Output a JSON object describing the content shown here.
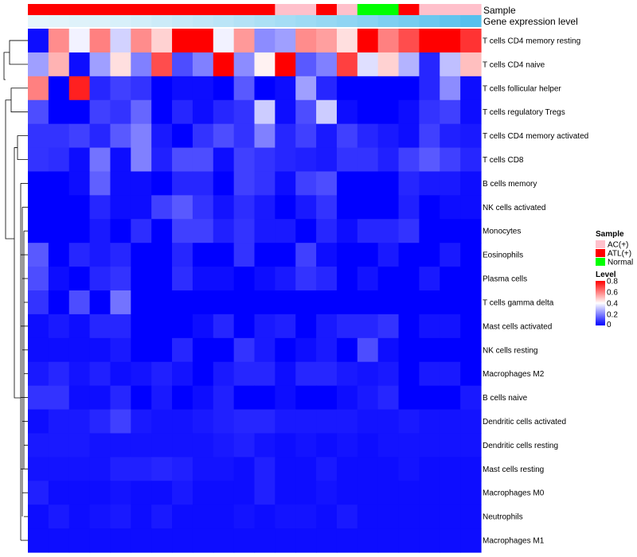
{
  "chart_data": {
    "type": "heatmap",
    "annotation_tracks": [
      {
        "name": "Sample",
        "values": [
          "ATL(+)",
          "ATL(+)",
          "ATL(+)",
          "ATL(+)",
          "ATL(+)",
          "ATL(+)",
          "ATL(+)",
          "ATL(+)",
          "ATL(+)",
          "ATL(+)",
          "ATL(+)",
          "ATL(+)",
          "AC(+)",
          "AC(+)",
          "ATL(+)",
          "AC(+)",
          "Normal",
          "Normal",
          "ATL(+)",
          "AC(+)",
          "AC(+)",
          "AC(+)"
        ]
      },
      {
        "name": "Gene expression level",
        "values": [
          0.0,
          0.02,
          0.05,
          0.07,
          0.1,
          0.14,
          0.18,
          0.22,
          0.26,
          0.3,
          0.35,
          0.4,
          0.45,
          0.5,
          0.55,
          0.6,
          0.65,
          0.72,
          0.78,
          0.85,
          0.92,
          1.0
        ]
      }
    ],
    "rows": [
      "T cells CD4 memory resting",
      "T cells CD4 naive",
      "T cells follicular helper",
      "T cells regulatory  Tregs",
      "T cells CD4 memory activated",
      "T cells CD8",
      "B cells memory",
      "NK cells activated",
      "Monocytes",
      "Eosinophils",
      "Plasma cells",
      "T cells gamma delta",
      "Mast cells activated",
      "NK cells resting",
      "Macrophages M2",
      "B cells naive",
      "Dendritic cells activated",
      "Dendritic cells resting",
      "Mast cells resting",
      "Macrophages M0",
      "Neutrophils",
      "Macrophages M1"
    ],
    "values": [
      [
        0.02,
        0.58,
        0.38,
        0.6,
        0.33,
        0.58,
        0.47,
        0.8,
        0.8,
        0.38,
        0.56,
        0.22,
        0.25,
        0.58,
        0.55,
        0.45,
        0.8,
        0.6,
        0.68,
        0.8,
        0.8,
        0.72
      ],
      [
        0.25,
        0.52,
        0.02,
        0.25,
        0.45,
        0.2,
        0.68,
        0.12,
        0.2,
        0.8,
        0.22,
        0.42,
        0.8,
        0.14,
        0.2,
        0.7,
        0.35,
        0.47,
        0.28,
        0.06,
        0.3,
        0.5
      ],
      [
        0.6,
        0.0,
        0.75,
        0.06,
        0.1,
        0.08,
        0.0,
        0.02,
        0.02,
        0.0,
        0.14,
        0.0,
        0.02,
        0.25,
        0.06,
        0.0,
        0.0,
        0.0,
        0.0,
        0.06,
        0.22,
        0.02
      ],
      [
        0.12,
        0.0,
        0.0,
        0.1,
        0.08,
        0.16,
        0.0,
        0.06,
        0.02,
        0.06,
        0.08,
        0.32,
        0.02,
        0.12,
        0.32,
        0.02,
        0.0,
        0.0,
        0.02,
        0.08,
        0.1,
        0.02
      ],
      [
        0.08,
        0.08,
        0.1,
        0.06,
        0.14,
        0.2,
        0.04,
        0.0,
        0.08,
        0.12,
        0.08,
        0.2,
        0.06,
        0.1,
        0.04,
        0.1,
        0.06,
        0.04,
        0.02,
        0.1,
        0.05,
        0.04
      ],
      [
        0.08,
        0.07,
        0.02,
        0.18,
        0.02,
        0.2,
        0.05,
        0.12,
        0.12,
        0.02,
        0.1,
        0.08,
        0.06,
        0.05,
        0.04,
        0.08,
        0.08,
        0.05,
        0.1,
        0.14,
        0.1,
        0.06
      ],
      [
        0.0,
        0.0,
        0.02,
        0.15,
        0.02,
        0.02,
        0.0,
        0.06,
        0.06,
        0.0,
        0.1,
        0.08,
        0.02,
        0.1,
        0.12,
        0.0,
        0.0,
        0.0,
        0.06,
        0.04,
        0.04,
        0.02
      ],
      [
        0.0,
        0.0,
        0.0,
        0.06,
        0.02,
        0.02,
        0.1,
        0.14,
        0.08,
        0.03,
        0.07,
        0.04,
        0.0,
        0.04,
        0.08,
        0.0,
        0.0,
        0.0,
        0.05,
        0.0,
        0.02,
        0.02
      ],
      [
        0.0,
        0.0,
        0.0,
        0.04,
        0.0,
        0.07,
        0.0,
        0.1,
        0.1,
        0.05,
        0.08,
        0.04,
        0.04,
        0.0,
        0.06,
        0.02,
        0.06,
        0.06,
        0.08,
        0.0,
        0.0,
        0.0
      ],
      [
        0.14,
        0.0,
        0.06,
        0.04,
        0.06,
        0.0,
        0.0,
        0.06,
        0.0,
        0.0,
        0.08,
        0.0,
        0.0,
        0.1,
        0.02,
        0.0,
        0.0,
        0.04,
        0.0,
        0.0,
        0.04,
        0.0
      ],
      [
        0.12,
        0.02,
        0.0,
        0.06,
        0.08,
        0.0,
        0.0,
        0.07,
        0.02,
        0.02,
        0.0,
        0.02,
        0.04,
        0.08,
        0.06,
        0.0,
        0.03,
        0.0,
        0.0,
        0.04,
        0.0,
        0.0
      ],
      [
        0.08,
        0.0,
        0.12,
        0.0,
        0.18,
        0.0,
        0.0,
        0.0,
        0.0,
        0.0,
        0.0,
        0.0,
        0.0,
        0.0,
        0.0,
        0.0,
        0.0,
        0.0,
        0.0,
        0.0,
        0.0,
        0.0
      ],
      [
        0.02,
        0.04,
        0.02,
        0.06,
        0.06,
        0.0,
        0.0,
        0.0,
        0.02,
        0.06,
        0.0,
        0.04,
        0.05,
        0.0,
        0.04,
        0.06,
        0.06,
        0.08,
        0.0,
        0.03,
        0.03,
        0.0
      ],
      [
        0.02,
        0.02,
        0.02,
        0.02,
        0.04,
        0.0,
        0.0,
        0.06,
        0.0,
        0.0,
        0.08,
        0.04,
        0.0,
        0.02,
        0.04,
        0.0,
        0.12,
        0.02,
        0.0,
        0.0,
        0.0,
        0.0
      ],
      [
        0.04,
        0.06,
        0.03,
        0.05,
        0.02,
        0.03,
        0.05,
        0.03,
        0.0,
        0.04,
        0.06,
        0.06,
        0.02,
        0.06,
        0.06,
        0.04,
        0.03,
        0.04,
        0.0,
        0.04,
        0.04,
        0.0
      ],
      [
        0.08,
        0.08,
        0.02,
        0.02,
        0.06,
        0.0,
        0.04,
        0.0,
        0.02,
        0.05,
        0.0,
        0.0,
        0.02,
        0.0,
        0.0,
        0.02,
        0.04,
        0.06,
        0.0,
        0.0,
        0.0,
        0.04
      ],
      [
        0.02,
        0.04,
        0.04,
        0.06,
        0.1,
        0.04,
        0.03,
        0.03,
        0.04,
        0.05,
        0.06,
        0.06,
        0.04,
        0.04,
        0.04,
        0.04,
        0.03,
        0.03,
        0.04,
        0.03,
        0.03,
        0.03
      ],
      [
        0.04,
        0.04,
        0.04,
        0.03,
        0.03,
        0.03,
        0.03,
        0.03,
        0.03,
        0.04,
        0.05,
        0.03,
        0.02,
        0.03,
        0.02,
        0.03,
        0.02,
        0.03,
        0.03,
        0.03,
        0.03,
        0.03
      ],
      [
        0.03,
        0.03,
        0.03,
        0.03,
        0.05,
        0.05,
        0.06,
        0.05,
        0.03,
        0.03,
        0.02,
        0.05,
        0.02,
        0.02,
        0.04,
        0.02,
        0.02,
        0.02,
        0.03,
        0.02,
        0.02,
        0.02
      ],
      [
        0.05,
        0.02,
        0.02,
        0.02,
        0.03,
        0.02,
        0.02,
        0.04,
        0.02,
        0.02,
        0.02,
        0.05,
        0.02,
        0.02,
        0.03,
        0.02,
        0.02,
        0.02,
        0.02,
        0.02,
        0.02,
        0.02
      ],
      [
        0.02,
        0.04,
        0.02,
        0.03,
        0.04,
        0.02,
        0.04,
        0.02,
        0.02,
        0.02,
        0.03,
        0.02,
        0.03,
        0.03,
        0.02,
        0.04,
        0.02,
        0.02,
        0.02,
        0.02,
        0.02,
        0.02
      ],
      [
        0.02,
        0.02,
        0.02,
        0.02,
        0.02,
        0.02,
        0.02,
        0.02,
        0.02,
        0.02,
        0.02,
        0.02,
        0.02,
        0.02,
        0.02,
        0.02,
        0.02,
        0.02,
        0.02,
        0.02,
        0.02,
        0.02
      ]
    ],
    "legend": {
      "sample_title": "Sample",
      "sample_entries": [
        {
          "label": "AC(+)",
          "color": "#ffc0cb"
        },
        {
          "label": "ATL(+)",
          "color": "#ff0000"
        },
        {
          "label": "Normal",
          "color": "#00ff00"
        }
      ],
      "level_title": "Level",
      "level_ticks": [
        "0.8",
        "0.6",
        "0.4",
        "0.2",
        "0"
      ],
      "level_tick_values": [
        0.8,
        0.6,
        0.4,
        0.2,
        0.0
      ],
      "level_range": [
        0,
        0.8
      ]
    },
    "colors": {
      "low": "#0000ff",
      "mid": "#ffffff",
      "high": "#ff0000",
      "expression_low": "#e6f5fb",
      "expression_high": "#56c0ed"
    }
  }
}
